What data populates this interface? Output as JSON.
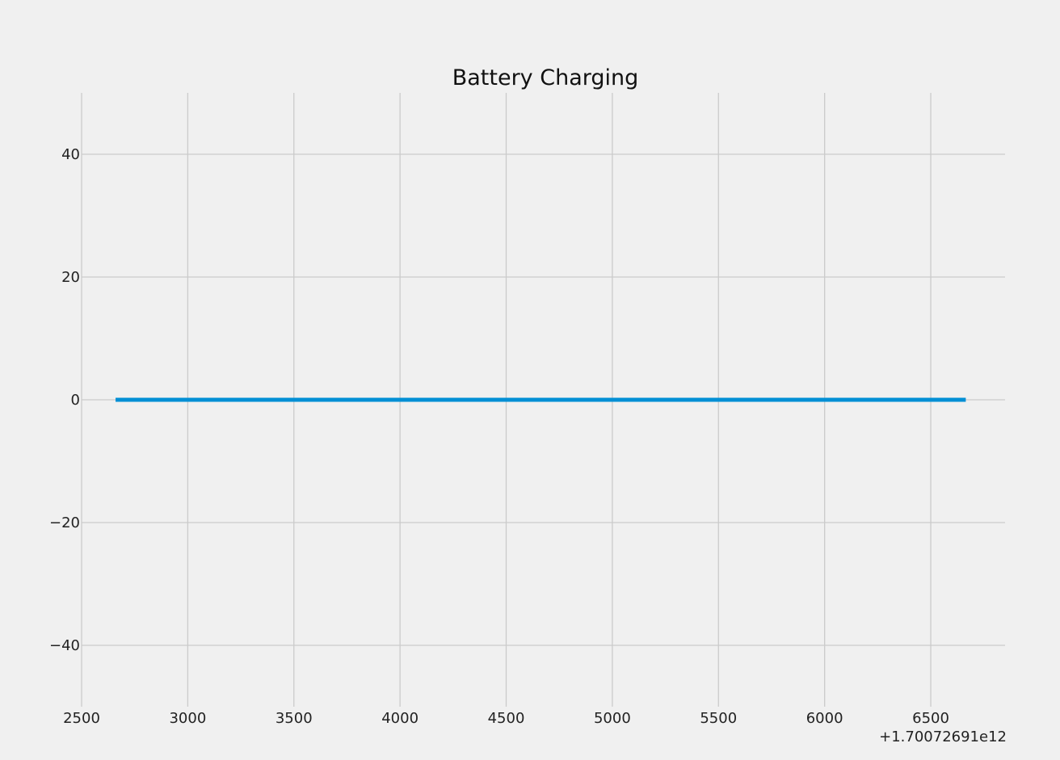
{
  "chart_data": {
    "type": "line",
    "title": "Battery Charging",
    "xlabel": "",
    "ylabel": "",
    "x_offset_label": "+1.70072691e12",
    "xlim": [
      2500,
      6850
    ],
    "ylim": [
      -50,
      50
    ],
    "x_ticks": [
      2500,
      3000,
      3500,
      4000,
      4500,
      5000,
      5500,
      6000,
      6500
    ],
    "x_tick_labels": [
      "2500",
      "3000",
      "3500",
      "4000",
      "4500",
      "5000",
      "5500",
      "6000",
      "6500"
    ],
    "y_ticks": [
      -40,
      -20,
      0,
      20,
      40
    ],
    "y_tick_labels": [
      "−40",
      "−20",
      "0",
      "20",
      "40"
    ],
    "grid": true,
    "series": [
      {
        "color": "#008fd5",
        "x": [
          2660,
          6665
        ],
        "y": [
          0,
          0
        ]
      }
    ]
  },
  "colors": {
    "background": "#f0f0f0",
    "grid": "#cbcbcb",
    "line": "#008fd5"
  }
}
